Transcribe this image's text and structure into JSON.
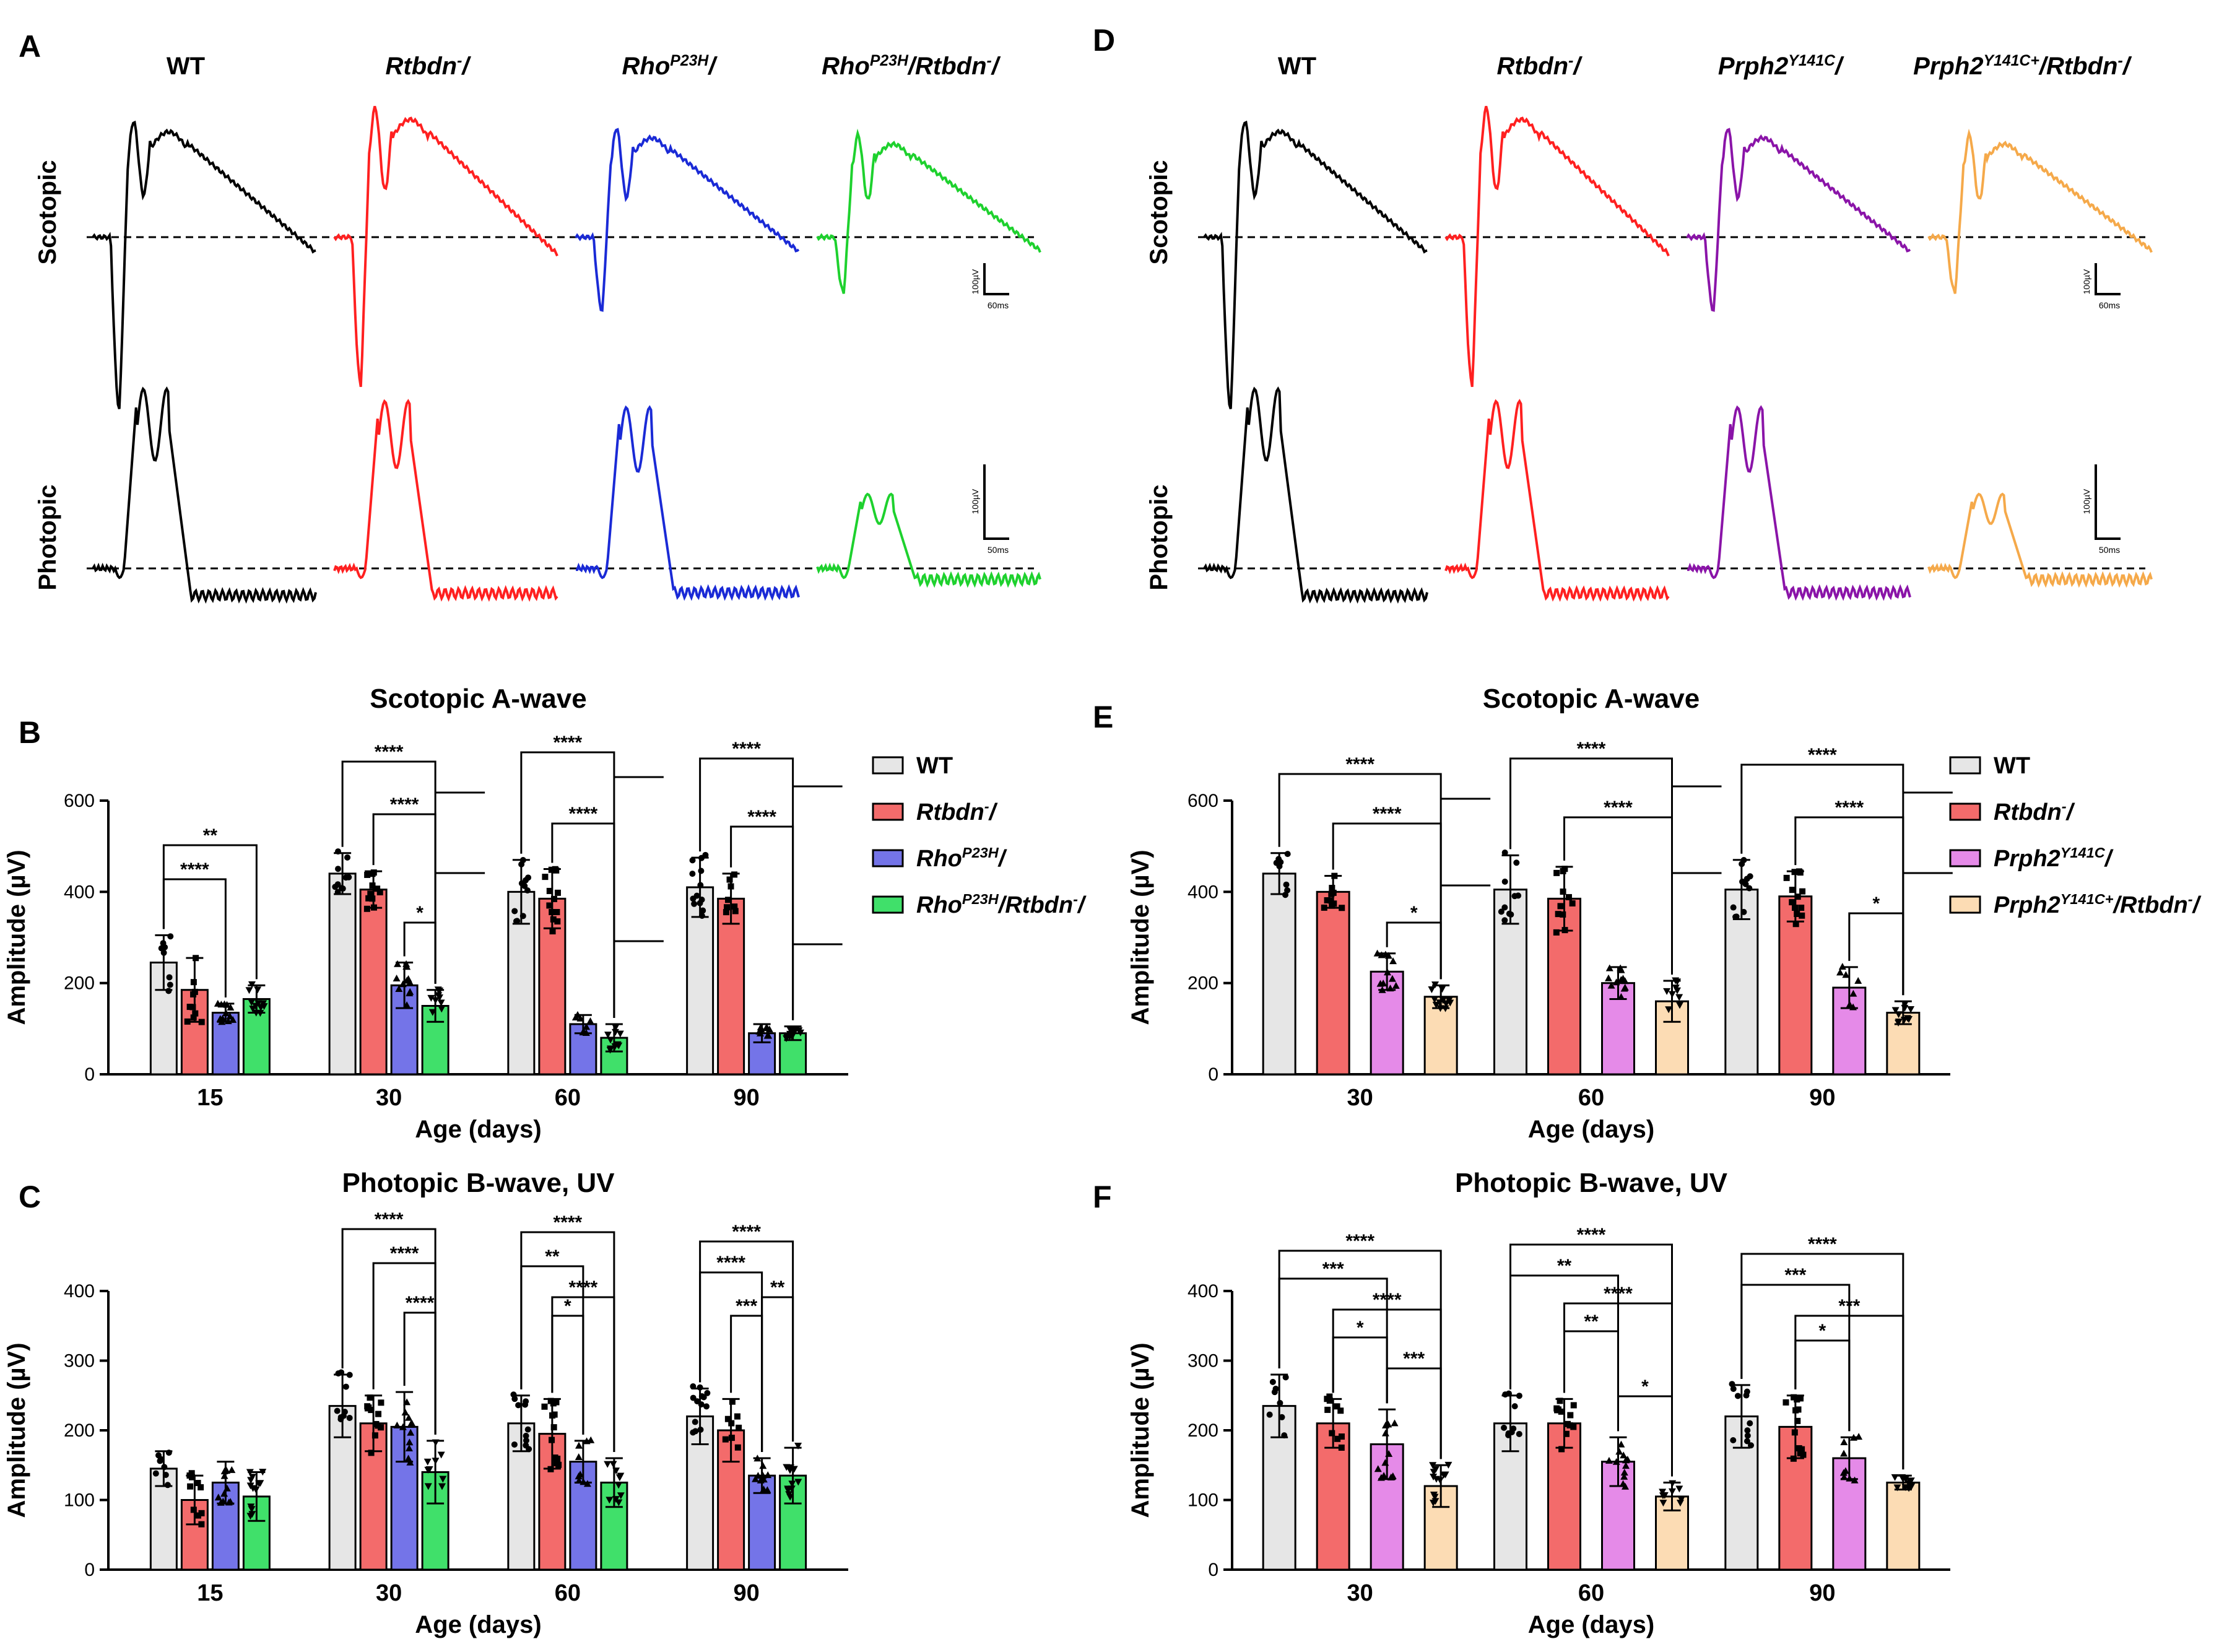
{
  "panels": {
    "A": "A",
    "B": "B",
    "C": "C",
    "D": "D",
    "E": "E",
    "F": "F"
  },
  "traces": {
    "A": {
      "columns": [
        "WT",
        "Rtbdn-/-",
        "RhoP23H/+",
        "RhoP23H/+/Rtbdn-/-"
      ],
      "colors": [
        "#000000",
        "#ff2020",
        "#1a2ad6",
        "#1ed12e"
      ],
      "rows": [
        "Scotopic",
        "Photopic"
      ]
    },
    "D": {
      "columns": [
        "WT",
        "Rtbdn-/-",
        "Prph2Y141C/+",
        "Prph2Y141C+/Rtbdn-/-"
      ],
      "colors": [
        "#000000",
        "#ff2020",
        "#8a14a8",
        "#f5a94a"
      ],
      "rows": [
        "Scotopic",
        "Photopic"
      ]
    },
    "scale_scotopic": {
      "v": "100µV",
      "t": "60ms"
    },
    "scale_photopic": {
      "v": "100µV",
      "t": "50ms"
    }
  },
  "legends": {
    "B": [
      "WT",
      "Rtbdn-/-",
      "RhoP23H/+",
      "RhoP23H/+/Rtbdn-/-"
    ],
    "E": [
      "WT",
      "Rtbdn-/-",
      "Prph2Y141C/+",
      "Prph2Y141C+/Rtbdn-/-"
    ]
  },
  "colors": {
    "wt": "#e6e6e6",
    "rtbdn": "#f36b6b",
    "rho": "#7474e8",
    "rhortbdn": "#40e06a",
    "prph2": "#e58ae8",
    "prph2rtbdn": "#fcdcb4"
  },
  "chart_data": [
    {
      "panel": "B",
      "type": "bar",
      "title": "Scotopic A-wave",
      "xlabel": "Age (days)",
      "ylabel": "Amplitude (µV)",
      "ylim": [
        0,
        600
      ],
      "yticks": [
        0,
        200,
        400,
        600
      ],
      "categories": [
        "15",
        "30",
        "60",
        "90"
      ],
      "series": [
        {
          "name": "WT",
          "values": [
            245,
            440,
            400,
            410
          ],
          "errors": [
            60,
            45,
            70,
            65
          ]
        },
        {
          "name": "Rtbdn-/-",
          "values": [
            185,
            405,
            385,
            385
          ],
          "errors": [
            70,
            40,
            65,
            55
          ]
        },
        {
          "name": "RhoP23H/+",
          "values": [
            135,
            195,
            110,
            90
          ],
          "errors": [
            20,
            50,
            20,
            20
          ]
        },
        {
          "name": "RhoP23H/+/Rtbdn-/-",
          "values": [
            165,
            150,
            80,
            90
          ],
          "errors": [
            30,
            35,
            30,
            15
          ]
        }
      ],
      "significance": [
        "**",
        "****",
        "****",
        "****",
        "*",
        "****",
        "****",
        "****",
        "****"
      ]
    },
    {
      "panel": "C",
      "type": "bar",
      "title": "Photopic B-wave, UV",
      "xlabel": "Age (days)",
      "ylabel": "Amplitude (µV)",
      "ylim": [
        0,
        400
      ],
      "yticks": [
        0,
        100,
        200,
        300,
        400
      ],
      "categories": [
        "15",
        "30",
        "60",
        "90"
      ],
      "series": [
        {
          "name": "WT",
          "values": [
            145,
            235,
            210,
            220
          ],
          "errors": [
            25,
            45,
            40,
            40
          ]
        },
        {
          "name": "Rtbdn-/-",
          "values": [
            100,
            210,
            195,
            200
          ],
          "errors": [
            35,
            40,
            50,
            45
          ]
        },
        {
          "name": "RhoP23H/+",
          "values": [
            125,
            205,
            155,
            135
          ],
          "errors": [
            30,
            50,
            30,
            25
          ]
        },
        {
          "name": "RhoP23H/+/Rtbdn-/-",
          "values": [
            105,
            140,
            125,
            135
          ],
          "errors": [
            35,
            45,
            35,
            40
          ]
        }
      ],
      "significance": [
        "****",
        "****",
        "****",
        "****",
        "**",
        "*",
        "****",
        "****",
        "****",
        "***",
        "**"
      ]
    },
    {
      "panel": "E",
      "type": "bar",
      "title": "Scotopic A-wave",
      "xlabel": "Age (days)",
      "ylabel": "Amplitude (µV)",
      "ylim": [
        0,
        600
      ],
      "yticks": [
        0,
        200,
        400,
        600
      ],
      "categories": [
        "30",
        "60",
        "90"
      ],
      "series": [
        {
          "name": "WT",
          "values": [
            440,
            405,
            405
          ],
          "errors": [
            45,
            75,
            65
          ]
        },
        {
          "name": "Rtbdn-/-",
          "values": [
            400,
            385,
            390
          ],
          "errors": [
            35,
            70,
            55
          ]
        },
        {
          "name": "Prph2Y141C/+",
          "values": [
            225,
            200,
            190
          ],
          "errors": [
            40,
            35,
            45
          ]
        },
        {
          "name": "Prph2Y141C+/Rtbdn-/-",
          "values": [
            170,
            160,
            135
          ],
          "errors": [
            25,
            45,
            25
          ]
        }
      ],
      "significance": [
        "****",
        "****",
        "*",
        "****",
        "****",
        "****",
        "****",
        "*"
      ]
    },
    {
      "panel": "F",
      "type": "bar",
      "title": "Photopic B-wave, UV",
      "xlabel": "Age (days)",
      "ylabel": "Amplitude (µV)",
      "ylim": [
        0,
        400
      ],
      "yticks": [
        0,
        100,
        200,
        300,
        400
      ],
      "categories": [
        "30",
        "60",
        "90"
      ],
      "series": [
        {
          "name": "WT",
          "values": [
            235,
            210,
            220
          ],
          "errors": [
            45,
            40,
            45
          ]
        },
        {
          "name": "Rtbdn-/-",
          "values": [
            210,
            210,
            205
          ],
          "errors": [
            35,
            35,
            45
          ]
        },
        {
          "name": "Prph2Y141C/+",
          "values": [
            180,
            155,
            160
          ],
          "errors": [
            50,
            35,
            30
          ]
        },
        {
          "name": "Prph2Y141C+/Rtbdn-/-",
          "values": [
            120,
            105,
            125
          ],
          "errors": [
            30,
            20,
            10
          ]
        }
      ],
      "significance": [
        "****",
        "***",
        "****",
        "*",
        "***",
        "****",
        "**",
        "****",
        "**",
        "*",
        "****",
        "***",
        "***",
        "*"
      ]
    }
  ]
}
